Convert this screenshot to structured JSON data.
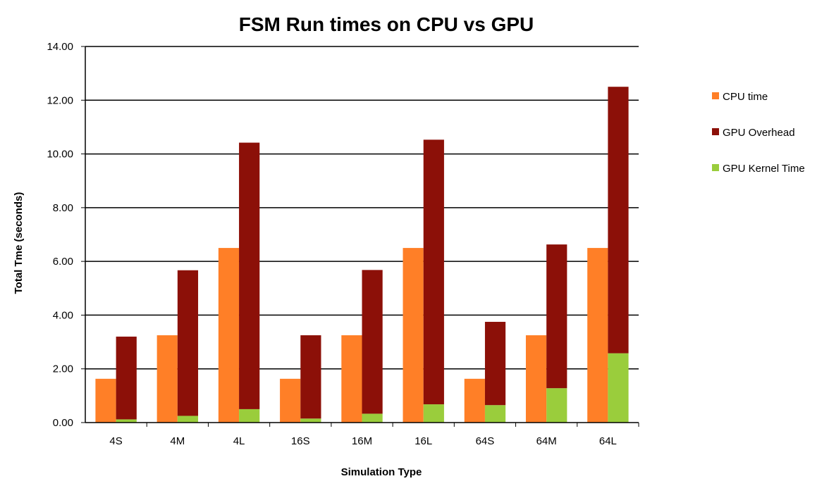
{
  "chart_data": {
    "type": "bar",
    "title": "FSM Run times on CPU vs GPU",
    "xlabel": "Simulation Type",
    "ylabel": "Total Tme (seconds)",
    "ylim": [
      0,
      14
    ],
    "yticks": [
      "0.00",
      "2.00",
      "4.00",
      "6.00",
      "8.00",
      "10.00",
      "12.00",
      "14.00"
    ],
    "grid": true,
    "legend_position": "right",
    "categories": [
      "4S",
      "4M",
      "4L",
      "16S",
      "16M",
      "16L",
      "64S",
      "64M",
      "64L"
    ],
    "series": [
      {
        "name": "CPU time",
        "color": "#FF7F27",
        "stack": "cpu",
        "values": [
          1.63,
          3.25,
          6.5,
          1.63,
          3.25,
          6.5,
          1.63,
          3.25,
          6.5
        ]
      },
      {
        "name": "GPU Kernel Time",
        "color": "#9ACD3C",
        "stack": "gpu",
        "values": [
          0.12,
          0.25,
          0.5,
          0.15,
          0.33,
          0.68,
          0.65,
          1.28,
          2.58
        ]
      },
      {
        "name": "GPU Overhead",
        "color": "#8C1008",
        "stack": "gpu",
        "values": [
          3.08,
          5.42,
          9.92,
          3.1,
          5.35,
          9.85,
          3.1,
          5.35,
          9.92
        ]
      }
    ],
    "legend_order": [
      "CPU time",
      "GPU Overhead",
      "GPU Kernel Time"
    ]
  }
}
